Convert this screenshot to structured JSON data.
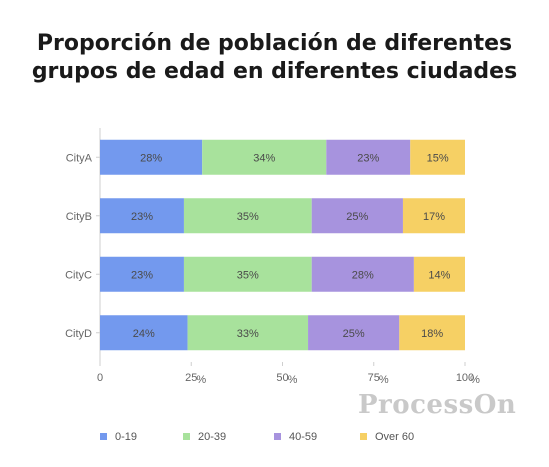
{
  "chart_data": {
    "type": "bar",
    "orientation": "horizontal",
    "stacked": "percent",
    "title_lines": [
      "Proporción de población de diferentes",
      "grupos de edad en diferentes ciudades"
    ],
    "categories": [
      "CityA",
      "CityB",
      "CityC",
      "CityD"
    ],
    "series": [
      {
        "name": "0-19",
        "color": "#7399EE",
        "values": [
          28,
          23,
          23,
          24
        ],
        "labels": [
          "28%",
          "23%",
          "23%",
          "24%"
        ]
      },
      {
        "name": "20-39",
        "color": "#A8E29C",
        "values": [
          34,
          35,
          35,
          33
        ],
        "labels": [
          "34%",
          "35%",
          "35%",
          "33%"
        ]
      },
      {
        "name": "40-59",
        "color": "#A793DE",
        "values": [
          23,
          25,
          28,
          25
        ],
        "labels": [
          "23%",
          "25%",
          "28%",
          "25%"
        ]
      },
      {
        "name": "Over 60",
        "color": "#F6D064",
        "values": [
          15,
          17,
          14,
          18
        ],
        "labels": [
          "15%",
          "17%",
          "14%",
          "18%"
        ]
      }
    ],
    "xlim": [
      0,
      100
    ],
    "x_ticks": [
      0,
      25,
      50,
      75,
      100
    ],
    "x_tick_labels": [
      "0",
      "25",
      "50",
      "75",
      "100"
    ],
    "x_tick_unit": "%",
    "grid": false,
    "legend": "bottom"
  },
  "watermark": "ProcessOn"
}
